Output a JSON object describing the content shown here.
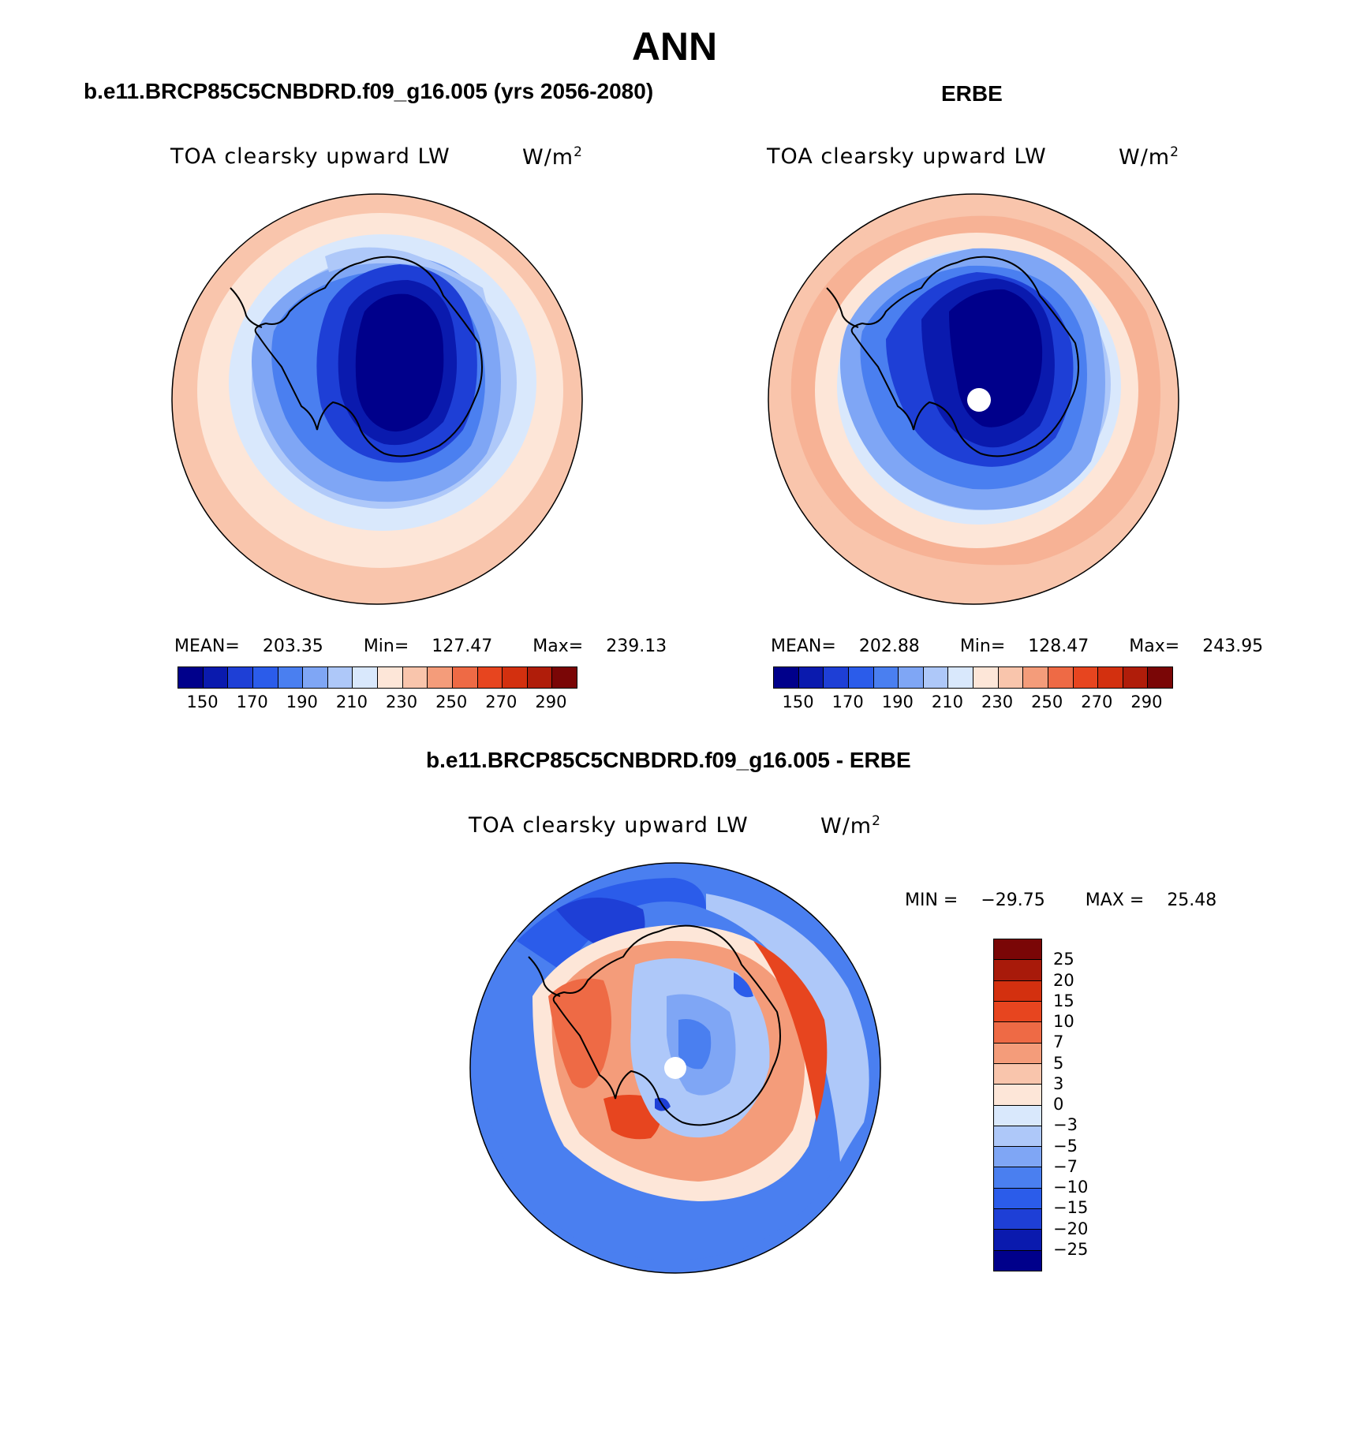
{
  "title": "ANN",
  "panels": {
    "model": {
      "title": "b.e11.BRCP85C5CNBDRD.f09_g16.005 (yrs 2056-2080)",
      "variable": "TOA clearsky upward LW",
      "units_base": "W/m",
      "units_exp": "2",
      "mean_label": "MEAN=",
      "mean_value": "203.35",
      "min_label": "Min=",
      "min_value": "127.47",
      "max_label": "Max=",
      "max_value": "239.13"
    },
    "obs": {
      "title": "ERBE",
      "variable": "TOA clearsky upward LW",
      "units_base": "W/m",
      "units_exp": "2",
      "mean_label": "MEAN=",
      "mean_value": "202.88",
      "min_label": "Min=",
      "min_value": "128.47",
      "max_label": "Max=",
      "max_value": "243.95"
    },
    "diff": {
      "title": "b.e11.BRCP85C5CNBDRD.f09_g16.005 - ERBE",
      "variable": "TOA clearsky upward LW",
      "units_base": "W/m",
      "units_exp": "2",
      "min_label": "MIN =",
      "min_value": "−29.75",
      "max_label": "MAX =",
      "max_value": "25.48"
    }
  },
  "colorbars": {
    "main_colors": [
      "#00008b",
      "#0a1aae",
      "#1e3fd6",
      "#2b5cea",
      "#4a7ff0",
      "#7fa6f5",
      "#aec8f9",
      "#d9e8fc",
      "#fde6d8",
      "#f9c5ac",
      "#f49c7a",
      "#ee6a45",
      "#e7451f",
      "#d3300f",
      "#b01d0a",
      "#7a0606"
    ],
    "main_ticks": [
      "150",
      "170",
      "190",
      "210",
      "230",
      "250",
      "270",
      "290"
    ],
    "diff_colors": [
      "#7a0606",
      "#a81a0a",
      "#d3300f",
      "#e7451f",
      "#ee6a45",
      "#f49c7a",
      "#f9c5ac",
      "#fde6d8",
      "#d9e8fc",
      "#aec8f9",
      "#7fa6f5",
      "#4a7ff0",
      "#2b5cea",
      "#1e3fd6",
      "#0a1aae",
      "#00008b"
    ],
    "diff_ticks": [
      "25",
      "20",
      "15",
      "10",
      "7",
      "5",
      "3",
      "0",
      "−3",
      "−5",
      "−7",
      "−10",
      "−15",
      "−20",
      "−25"
    ]
  }
}
